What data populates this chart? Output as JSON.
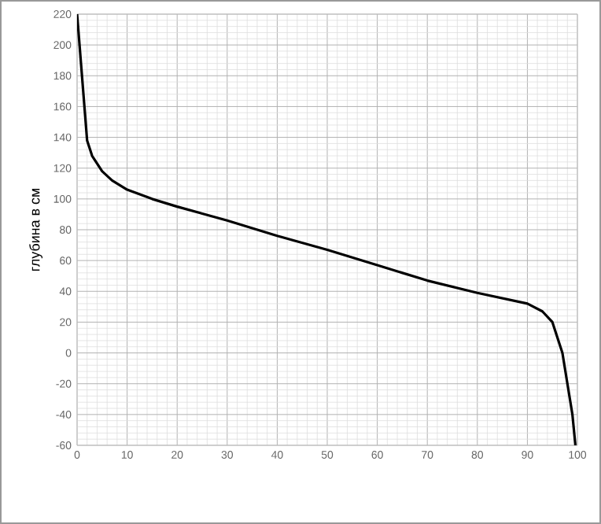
{
  "chart_data": {
    "type": "line",
    "ylabel": "глубина в см",
    "xlim": [
      0,
      100
    ],
    "ylim": [
      -60,
      220
    ],
    "xticks": [
      0,
      10,
      20,
      30,
      40,
      50,
      60,
      70,
      80,
      90,
      100
    ],
    "yticks": [
      -60,
      -40,
      -20,
      0,
      20,
      40,
      60,
      80,
      100,
      120,
      140,
      160,
      180,
      200,
      220
    ],
    "grid": true,
    "marker": "none",
    "line_style": "solid",
    "series": [
      {
        "color": "#000000",
        "x": [
          0,
          2,
          3,
          5,
          7,
          10,
          15,
          20,
          30,
          40,
          50,
          60,
          70,
          80,
          90,
          93,
          95,
          96,
          97,
          98,
          99,
          99.6
        ],
        "values": [
          220,
          138,
          128,
          118,
          112,
          106,
          100,
          95,
          86,
          76,
          67,
          57,
          47,
          39,
          32,
          27,
          20,
          10,
          0,
          -20,
          -40,
          -60
        ]
      }
    ]
  }
}
